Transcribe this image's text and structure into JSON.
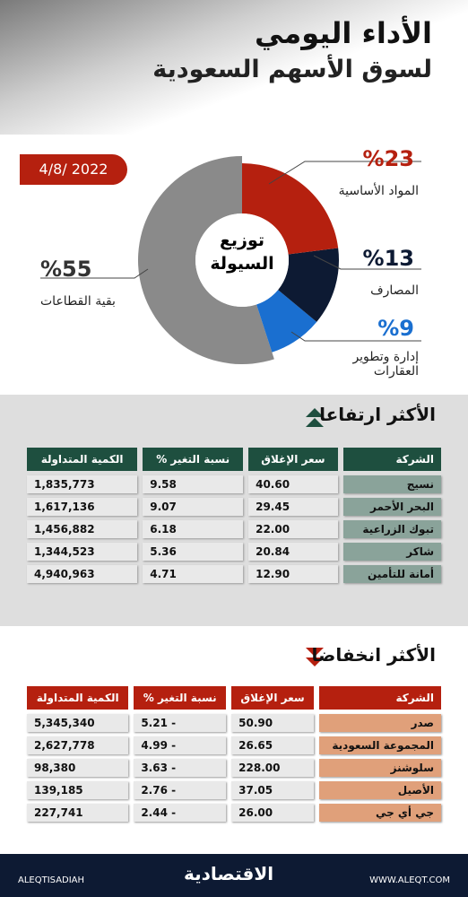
{
  "header": {
    "title": "الأداء اليومي",
    "subtitle": "لسوق الأسهم السعودية"
  },
  "date": "4/8/ 2022",
  "chart_data": {
    "type": "pie",
    "title": "توزيع السيولة",
    "categories": [
      "المواد الأساسية",
      "المصارف",
      "إدارة وتطوير العقارات",
      "بقية القطاعات"
    ],
    "values": [
      23,
      13,
      9,
      55
    ],
    "value_labels": [
      "%23",
      "%13",
      "%9",
      "%55"
    ],
    "colors": [
      "#b5200f",
      "#0d1a33",
      "#1a6fd0",
      "#8a8a8a"
    ]
  },
  "gainers": {
    "title": "الأكثر ارتفاعا",
    "header_color": "#1e4f3f",
    "company_color": "#8aa39a",
    "columns": [
      "الشركة",
      "سعر الإغلاق",
      "نسبة التغير %",
      "الكمية المتداولة"
    ],
    "rows": [
      [
        "نسيج",
        "40.60",
        "9.58",
        "1,835,773"
      ],
      [
        "البحر الأحمر",
        "29.45",
        "9.07",
        "1,617,136"
      ],
      [
        "تبوك الزراعية",
        "22.00",
        "6.18",
        "1,456,882"
      ],
      [
        "شاكر",
        "20.84",
        "5.36",
        "1,344,523"
      ],
      [
        "أمانة للتأمين",
        "12.90",
        "4.71",
        "4,940,963"
      ]
    ]
  },
  "losers": {
    "title": "الأكثر انخفاضا",
    "header_color": "#b5200f",
    "company_color": "#e0a07a",
    "columns": [
      "الشركة",
      "سعر الإغلاق",
      "نسبة التغير %",
      "الكمية المتداولة"
    ],
    "rows": [
      [
        "صدر",
        "50.90",
        "- 5.21",
        "5,345,340"
      ],
      [
        "المجموعة السعودية",
        "26.65",
        "- 4.99",
        "2,627,778"
      ],
      [
        "سلوشنز",
        "228.00",
        "- 3.63",
        "98,380"
      ],
      [
        "الأصيل",
        "37.05",
        "- 2.76",
        "139,185"
      ],
      [
        "جي أي جي",
        "26.00",
        "- 2.44",
        "227,741"
      ]
    ]
  },
  "footer": {
    "handle": "ALEQTISADIAH",
    "brand": "الاقتصادية",
    "website": "WWW.ALEQT.COM"
  }
}
